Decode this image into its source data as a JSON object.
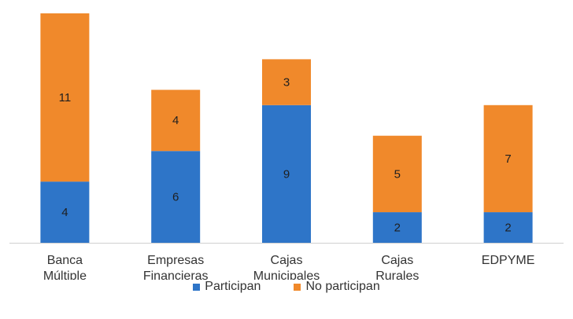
{
  "chart_data": {
    "type": "bar",
    "stacked": true,
    "categories": [
      [
        "Banca",
        "Múltiple"
      ],
      [
        "Empresas",
        "Financieras"
      ],
      [
        "Cajas",
        "Municipales"
      ],
      [
        "Cajas",
        "Rurales"
      ],
      [
        "EDPYME"
      ]
    ],
    "series": [
      {
        "name": "Participan",
        "color": "#2E75C8",
        "values": [
          4,
          6,
          9,
          2,
          2
        ]
      },
      {
        "name": "No participan",
        "color": "#F0892B",
        "values": [
          11,
          4,
          3,
          5,
          7
        ]
      }
    ],
    "legend_position": "bottom",
    "grid": false,
    "ylim": [
      0,
      15
    ]
  }
}
